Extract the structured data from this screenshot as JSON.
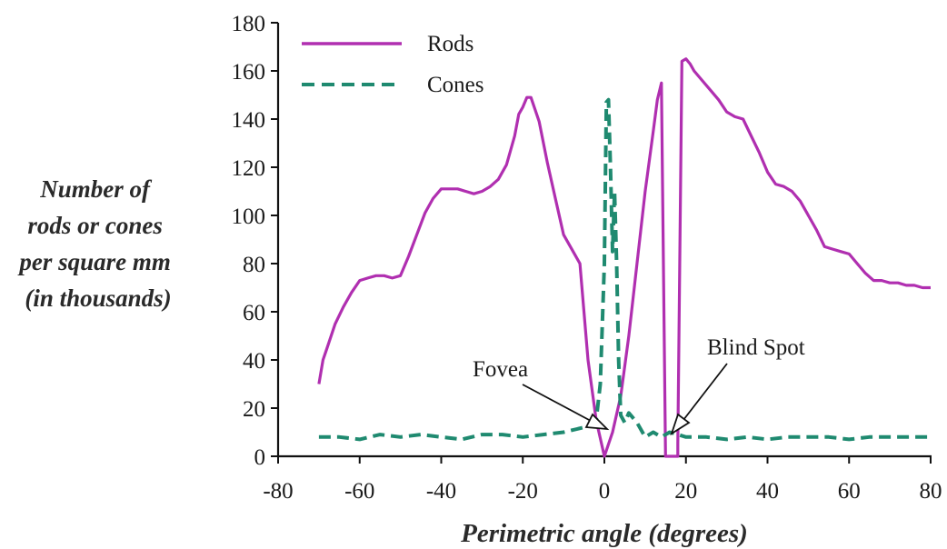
{
  "chart_data": {
    "type": "line",
    "xlabel": "Perimetric angle (degrees)",
    "ylabel": [
      "Number of",
      "rods or cones",
      "per square mm",
      "(in thousands)"
    ],
    "xlim": [
      -80,
      80
    ],
    "ylim": [
      0,
      180
    ],
    "xticks": [
      -80,
      -60,
      -40,
      -20,
      0,
      20,
      40,
      60,
      80
    ],
    "yticks": [
      0,
      20,
      40,
      60,
      80,
      100,
      120,
      140,
      160,
      180
    ],
    "grid": false,
    "legend_position": "top-left",
    "series": [
      {
        "name": "Rods",
        "color": "#b02fb0",
        "style": "solid",
        "x": [
          -70,
          -69,
          -68,
          -66,
          -64,
          -62,
          -60,
          -58,
          -56,
          -54,
          -52,
          -50,
          -48,
          -46,
          -44,
          -42,
          -40,
          -38,
          -36,
          -34,
          -32,
          -30,
          -28,
          -26,
          -24,
          -22,
          -21,
          -20,
          -19,
          -18,
          -17,
          -16,
          -14,
          -12,
          -10,
          -8,
          -6,
          -4,
          -2,
          0,
          2,
          4,
          6,
          8,
          10,
          12,
          13,
          14,
          14,
          15,
          16,
          17,
          18,
          18,
          19,
          20,
          21,
          22,
          24,
          26,
          28,
          30,
          32,
          34,
          36,
          38,
          40,
          42,
          44,
          46,
          48,
          50,
          52,
          54,
          56,
          58,
          60,
          62,
          64,
          66,
          68,
          70,
          72,
          74,
          76,
          78,
          80
        ],
        "y": [
          30,
          40,
          45,
          55,
          62,
          68,
          73,
          74,
          75,
          75,
          74,
          75,
          83,
          92,
          101,
          107,
          111,
          111,
          111,
          110,
          109,
          110,
          112,
          115,
          121,
          133,
          142,
          145,
          149,
          149,
          144,
          139,
          122,
          107,
          92,
          86,
          80,
          40,
          15,
          0,
          10,
          25,
          50,
          80,
          110,
          135,
          148,
          155,
          154,
          0,
          0,
          0,
          0,
          5,
          164,
          165,
          163,
          160,
          156,
          152,
          148,
          143,
          141,
          140,
          133,
          126,
          118,
          113,
          112,
          110,
          106,
          100,
          94,
          87,
          86,
          85,
          84,
          80,
          76,
          73,
          73,
          72,
          72,
          71,
          71,
          70,
          70
        ]
      },
      {
        "name": "Cones",
        "color": "#1f8a70",
        "style": "dashed",
        "x": [
          -70,
          -65,
          -60,
          -55,
          -50,
          -45,
          -40,
          -35,
          -30,
          -25,
          -20,
          -15,
          -10,
          -5,
          -2,
          -1,
          0,
          0.5,
          1,
          1.5,
          2,
          2.5,
          3,
          3.5,
          4,
          5,
          6,
          8,
          10,
          12,
          14,
          16,
          18,
          20,
          22,
          25,
          30,
          35,
          40,
          45,
          50,
          55,
          60,
          65,
          70,
          75,
          80
        ],
        "y": [
          8,
          8,
          7,
          9,
          8,
          9,
          8,
          7,
          9,
          9,
          8,
          9,
          10,
          12,
          15,
          30,
          80,
          147,
          148,
          120,
          85,
          110,
          80,
          40,
          17,
          14,
          18,
          14,
          8,
          10,
          8,
          10,
          9,
          8,
          8,
          8,
          7,
          8,
          7,
          8,
          8,
          8,
          7,
          8,
          8,
          8,
          8
        ]
      }
    ],
    "annotations": [
      {
        "text": "Fovea",
        "points_to_x": 0
      },
      {
        "text": "Blind Spot",
        "points_to_x": 18
      }
    ]
  }
}
